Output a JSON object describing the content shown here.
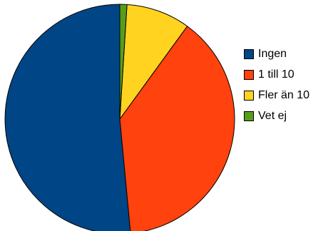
{
  "chart_data": {
    "type": "pie",
    "title": "",
    "slices": [
      {
        "label": "Ingen",
        "value": 51.5,
        "color": "#004586"
      },
      {
        "label": "1 till 10",
        "value": 38.5,
        "color": "#ff420e"
      },
      {
        "label": "Fler än 10",
        "value": 9.0,
        "color": "#ffd320"
      },
      {
        "label": "Vet ej",
        "value": 1.0,
        "color": "#579d1c"
      }
    ],
    "legend_position": "right",
    "start_angle": "top",
    "direction": "clockwise-reverse"
  },
  "legend": {
    "items": [
      {
        "label": "Ingen",
        "color": "#004586"
      },
      {
        "label": "1 till 10",
        "color": "#ff420e"
      },
      {
        "label": "Fler än 10",
        "color": "#ffd320"
      },
      {
        "label": "Vet ej",
        "color": "#579d1c"
      }
    ]
  }
}
